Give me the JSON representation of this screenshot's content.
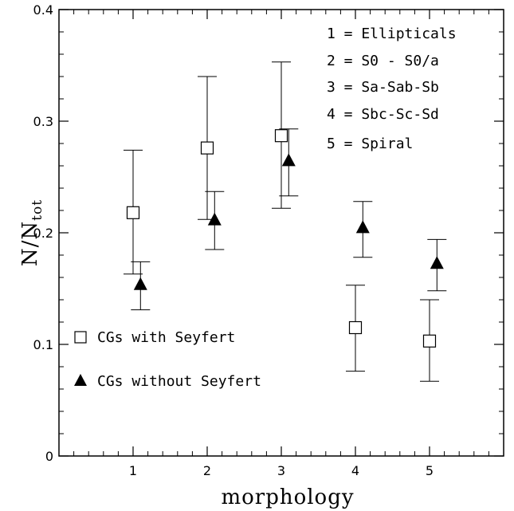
{
  "chart_data": {
    "type": "scatter",
    "xlabel": "morphology",
    "ylabel": "N/N",
    "ylabel_subscript": "tot",
    "xlim": [
      0,
      6
    ],
    "ylim": [
      0,
      0.4
    ],
    "x_ticks": [
      1,
      2,
      3,
      4,
      5
    ],
    "x_tick_labels": [
      "1",
      "2",
      "3",
      "4",
      "5"
    ],
    "y_ticks": [
      0,
      0.1,
      0.2,
      0.3,
      0.4
    ],
    "y_tick_labels": [
      "0",
      "0.1",
      "0.2",
      "0.3",
      "0.4"
    ],
    "grid": false,
    "legend_position": "lower-left",
    "key_position": "upper-right",
    "morphology_key": [
      "1 = Ellipticals",
      "2 = S0 - S0/a",
      "3 = Sa-Sab-Sb",
      "4 = Sbc-Sc-Sd",
      "5 = Spiral"
    ],
    "series": [
      {
        "name": "CGs with Seyfert",
        "marker": "open-square",
        "points": [
          {
            "x": 1,
            "y": 0.218,
            "ylo": 0.163,
            "yhi": 0.274
          },
          {
            "x": 2,
            "y": 0.276,
            "ylo": 0.212,
            "yhi": 0.34
          },
          {
            "x": 3,
            "y": 0.287,
            "ylo": 0.222,
            "yhi": 0.353
          },
          {
            "x": 4,
            "y": 0.115,
            "ylo": 0.076,
            "yhi": 0.153
          },
          {
            "x": 5,
            "y": 0.103,
            "ylo": 0.067,
            "yhi": 0.14
          }
        ]
      },
      {
        "name": "CGs without Seyfert",
        "marker": "filled-triangle",
        "points": [
          {
            "x": 1.1,
            "y": 0.153,
            "ylo": 0.131,
            "yhi": 0.174
          },
          {
            "x": 2.1,
            "y": 0.211,
            "ylo": 0.185,
            "yhi": 0.237
          },
          {
            "x": 3.1,
            "y": 0.264,
            "ylo": 0.233,
            "yhi": 0.293
          },
          {
            "x": 4.1,
            "y": 0.204,
            "ylo": 0.178,
            "yhi": 0.228
          },
          {
            "x": 5.1,
            "y": 0.172,
            "ylo": 0.148,
            "yhi": 0.194
          }
        ]
      }
    ]
  }
}
